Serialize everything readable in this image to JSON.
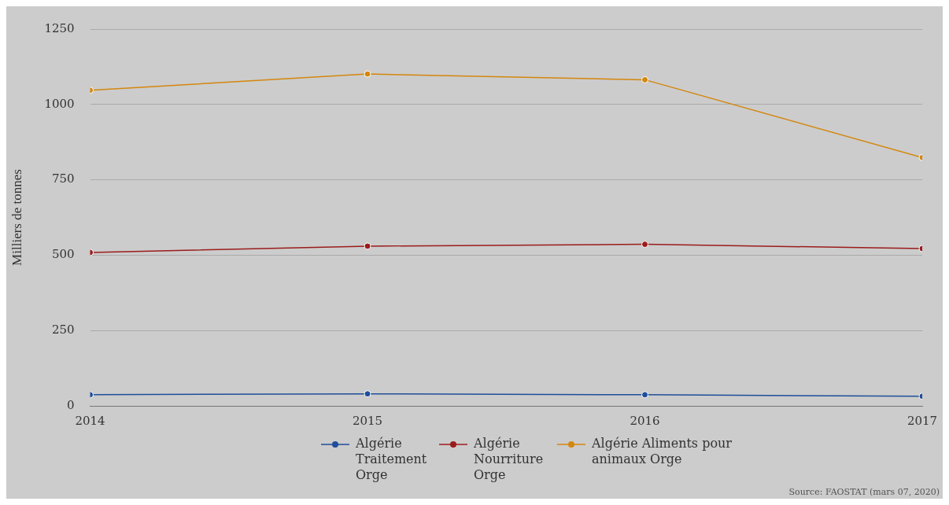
{
  "chart_data": {
    "type": "line",
    "ylabel": "Milliers de tonnes",
    "x": [
      2014,
      2015,
      2016,
      2017
    ],
    "xlim": [
      2014,
      2017
    ],
    "xticks": [
      2014,
      2015,
      2016,
      2017
    ],
    "ylim": [
      0,
      1250
    ],
    "yticks": [
      0,
      250,
      500,
      750,
      1000,
      1250
    ],
    "grid": "y",
    "legend": "bottom",
    "marker": "circle",
    "line_style": "solid",
    "series": [
      {
        "name": "Algérie Traitement Orge",
        "color": "#1f4e9a",
        "values": [
          37,
          40,
          37,
          32
        ]
      },
      {
        "name": "Algérie Nourriture Orge",
        "color": "#9b1c1c",
        "values": [
          509,
          530,
          536,
          522
        ]
      },
      {
        "name": "Algérie Aliments pour animaux Orge",
        "color": "#d4870e",
        "values": [
          1047,
          1101,
          1082,
          824
        ]
      }
    ],
    "annotations": [
      "Source: FAOSTAT (mars 07, 2020)"
    ]
  }
}
